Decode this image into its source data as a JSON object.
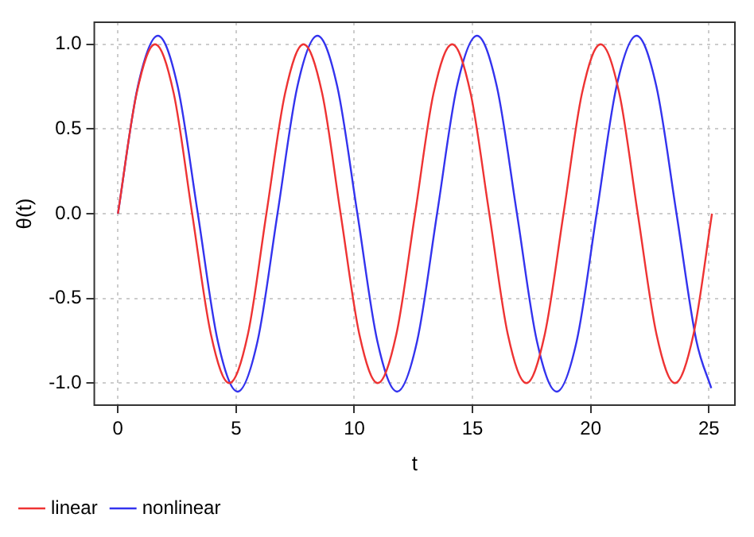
{
  "chart_data": {
    "type": "line",
    "xlabel": "t",
    "ylabel": "θ(t)",
    "xlim": [
      -1,
      26.1
    ],
    "ylim": [
      -1.13,
      1.13
    ],
    "xticks": [
      0,
      5,
      10,
      15,
      20,
      25
    ],
    "yticks": [
      {
        "value": -1,
        "label": "-1.0"
      },
      {
        "value": -0.5,
        "label": "-0.5"
      },
      {
        "value": 0,
        "label": "0.0"
      },
      {
        "value": 0.5,
        "label": "0.5"
      },
      {
        "value": 1,
        "label": "1.0"
      }
    ],
    "grid": true,
    "legend": "bottom left",
    "marker": "none",
    "line_style": "solid",
    "series": [
      {
        "name": "linear",
        "color": "#ee3333",
        "x": [
          0,
          0.79,
          1.57,
          2.36,
          3.14,
          3.93,
          4.71,
          5.5,
          6.28,
          7.07,
          7.85,
          8.64,
          9.42,
          10.21,
          10.99,
          11.78,
          12.57,
          13.35,
          14.14,
          14.92,
          15.71,
          16.49,
          17.28,
          18.06,
          18.85,
          19.63,
          20.42,
          21.21,
          21.99,
          22.78,
          23.56,
          24.35,
          25.13
        ],
        "values": [
          0,
          0.71,
          1,
          0.71,
          0,
          -0.71,
          -1,
          -0.71,
          0,
          0.71,
          1,
          0.71,
          0,
          -0.71,
          -1,
          -0.71,
          0,
          0.71,
          1,
          0.71,
          0,
          -0.71,
          -1,
          -0.71,
          0,
          0.71,
          1,
          0.71,
          0,
          -0.71,
          -1,
          -0.71,
          0
        ]
      },
      {
        "name": "nonlinear",
        "color": "#3333ee",
        "x": [
          0,
          0.84,
          1.69,
          2.53,
          3.38,
          4.22,
          5.06,
          5.91,
          6.75,
          7.59,
          8.44,
          9.28,
          10.13,
          10.97,
          11.81,
          12.66,
          13.5,
          14.34,
          15.19,
          16.03,
          16.88,
          17.72,
          18.56,
          19.41,
          20.25,
          21.09,
          21.94,
          22.78,
          23.63,
          24.47,
          25.1
        ],
        "values": [
          0,
          0.75,
          1.05,
          0.75,
          0,
          -0.75,
          -1.05,
          -0.75,
          0,
          0.75,
          1.05,
          0.75,
          0,
          -0.75,
          -1.05,
          -0.75,
          0,
          0.75,
          1.05,
          0.75,
          0,
          -0.75,
          -1.05,
          -0.75,
          0,
          0.75,
          1.05,
          0.75,
          0,
          -0.75,
          -1.03
        ]
      }
    ]
  }
}
